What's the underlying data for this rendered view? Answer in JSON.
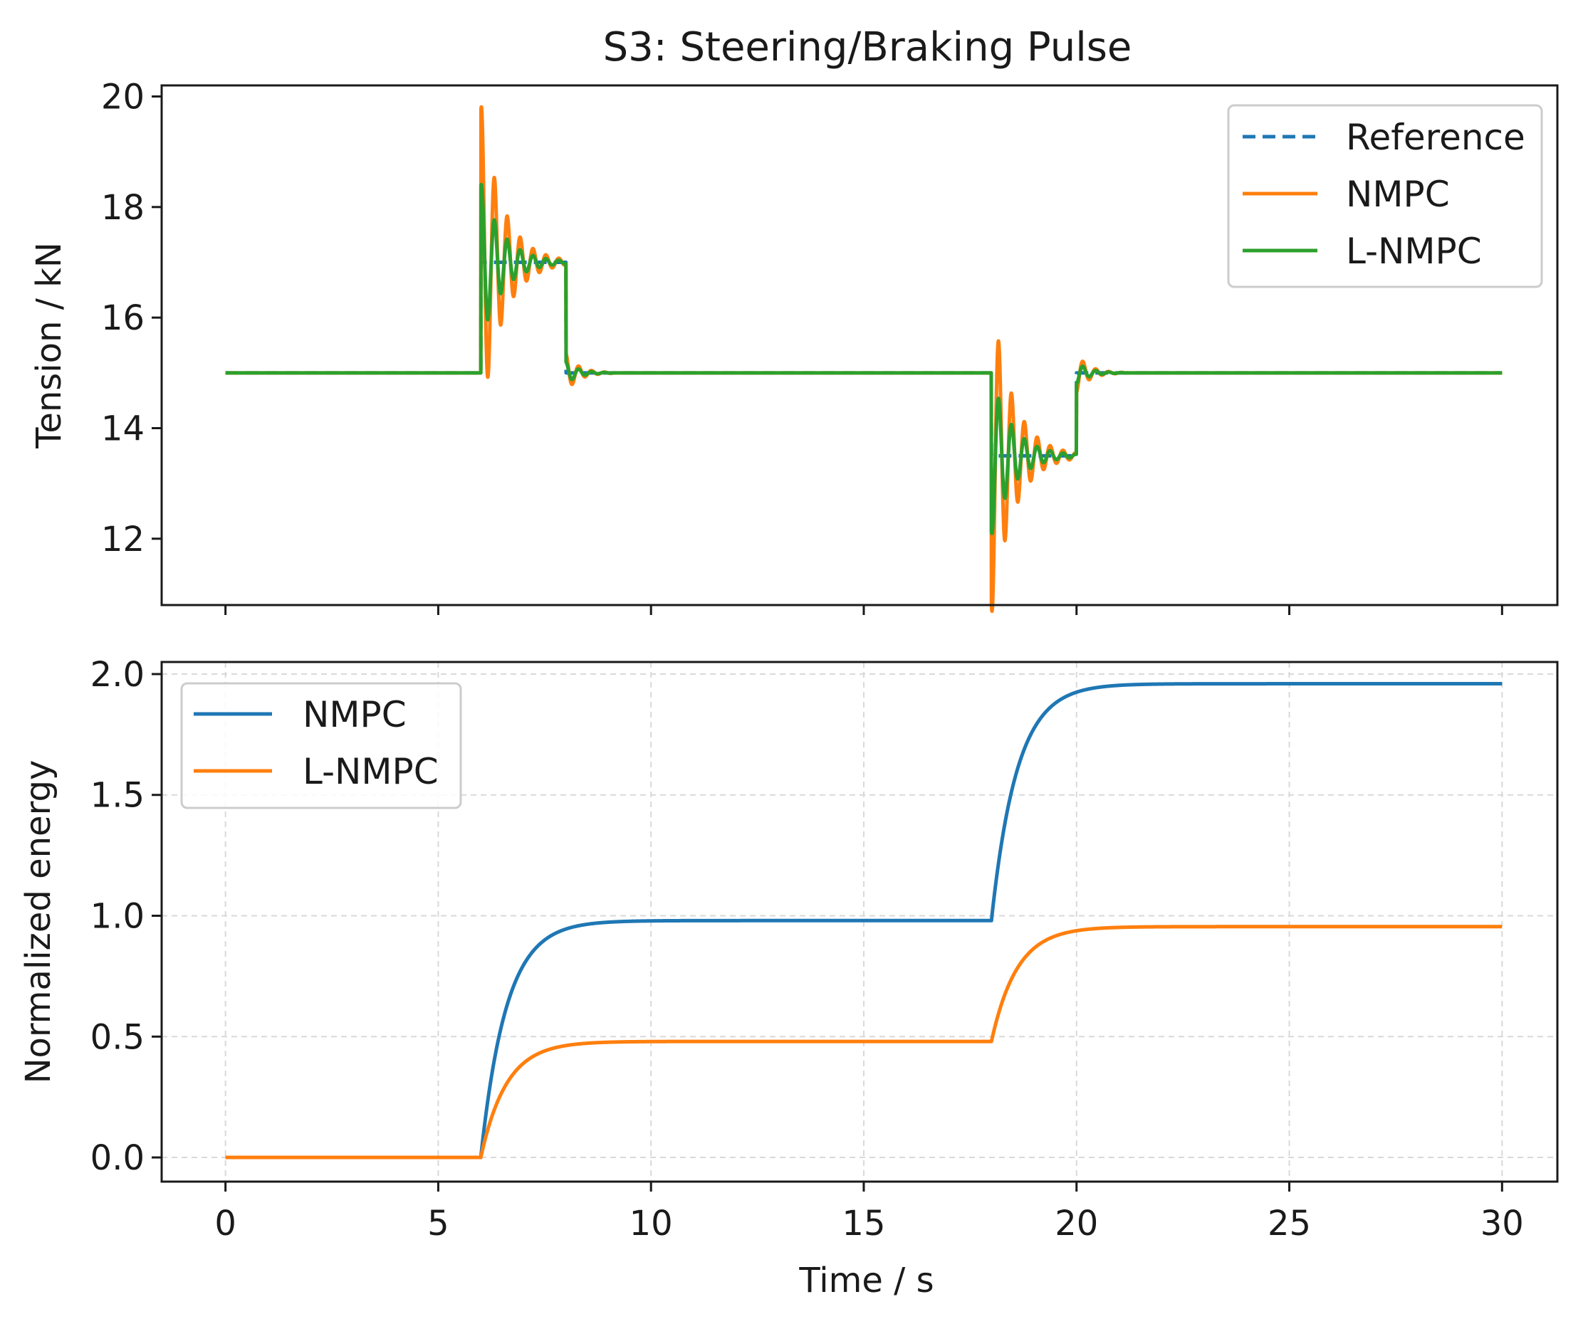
{
  "chart_data": [
    {
      "type": "line",
      "title": "S3: Steering/Braking Pulse",
      "xlabel": "",
      "ylabel": "Tension / kN",
      "xlim": [
        -1.5,
        31.3
      ],
      "ylim": [
        10.8,
        20.2
      ],
      "xticks": [
        0,
        5,
        10,
        15,
        20,
        25,
        30
      ],
      "yticks": [
        12,
        14,
        16,
        18,
        20
      ],
      "ytick_labels": [
        "12",
        "14",
        "16",
        "18",
        "20"
      ],
      "grid": false,
      "legend_position": "top-right",
      "series": [
        {
          "name": "Reference",
          "color": "#1f77b4",
          "style": "dashed",
          "base": 15.0,
          "pulses": [
            {
              "start": 6.0,
              "end": 8.0,
              "level": 17.0
            },
            {
              "start": 18.0,
              "end": 20.0,
              "level": 13.5
            }
          ]
        },
        {
          "name": "NMPC",
          "color": "#ff7f0e",
          "style": "solid",
          "base": 15.0,
          "response": {
            "frequency_hz": 3.3,
            "damping_per_s": 2.0,
            "first_peak": 19.85
          },
          "pulses": [
            {
              "start": 6.0,
              "end": 8.0,
              "level": 17.0,
              "amplitude": 2.9,
              "tail_amplitude": 0.35
            },
            {
              "start": 18.0,
              "end": 20.0,
              "level": 13.5,
              "amplitude": 2.9,
              "tail_amplitude": 0.35
            }
          ]
        },
        {
          "name": "L-NMPC",
          "color": "#2ca02c",
          "style": "solid",
          "base": 15.0,
          "response": {
            "frequency_hz": 3.3,
            "damping_per_s": 2.0,
            "first_peak": 18.25
          },
          "pulses": [
            {
              "start": 6.0,
              "end": 8.0,
              "level": 17.0,
              "amplitude": 1.45,
              "tail_amplitude": 0.2
            },
            {
              "start": 18.0,
              "end": 20.0,
              "level": 13.5,
              "amplitude": 1.45,
              "tail_amplitude": 0.2
            }
          ]
        }
      ]
    },
    {
      "type": "line",
      "title": "",
      "xlabel": "Time / s",
      "ylabel": "Normalized energy",
      "xlim": [
        -1.5,
        31.3
      ],
      "ylim": [
        -0.1,
        2.05
      ],
      "xticks": [
        0,
        5,
        10,
        15,
        20,
        25,
        30
      ],
      "xtick_labels": [
        "0",
        "5",
        "10",
        "15",
        "20",
        "25",
        "30"
      ],
      "yticks": [
        0.0,
        0.5,
        1.0,
        1.5,
        2.0
      ],
      "ytick_labels": [
        "0.0",
        "0.5",
        "1.0",
        "1.5",
        "2.0"
      ],
      "grid": true,
      "legend_position": "top-left",
      "series": [
        {
          "name": "NMPC",
          "color": "#1f77b4",
          "style": "solid",
          "segments": [
            {
              "start": 6.0,
              "from": 0.0,
              "to": 0.98,
              "tau": 0.6
            },
            {
              "start": 18.0,
              "from": 0.98,
              "to": 1.96,
              "tau": 0.6
            }
          ]
        },
        {
          "name": "L-NMPC",
          "color": "#ff7f0e",
          "style": "solid",
          "segments": [
            {
              "start": 6.0,
              "from": 0.0,
              "to": 0.48,
              "tau": 0.6
            },
            {
              "start": 18.0,
              "from": 0.48,
              "to": 0.955,
              "tau": 0.6
            }
          ]
        }
      ]
    }
  ]
}
